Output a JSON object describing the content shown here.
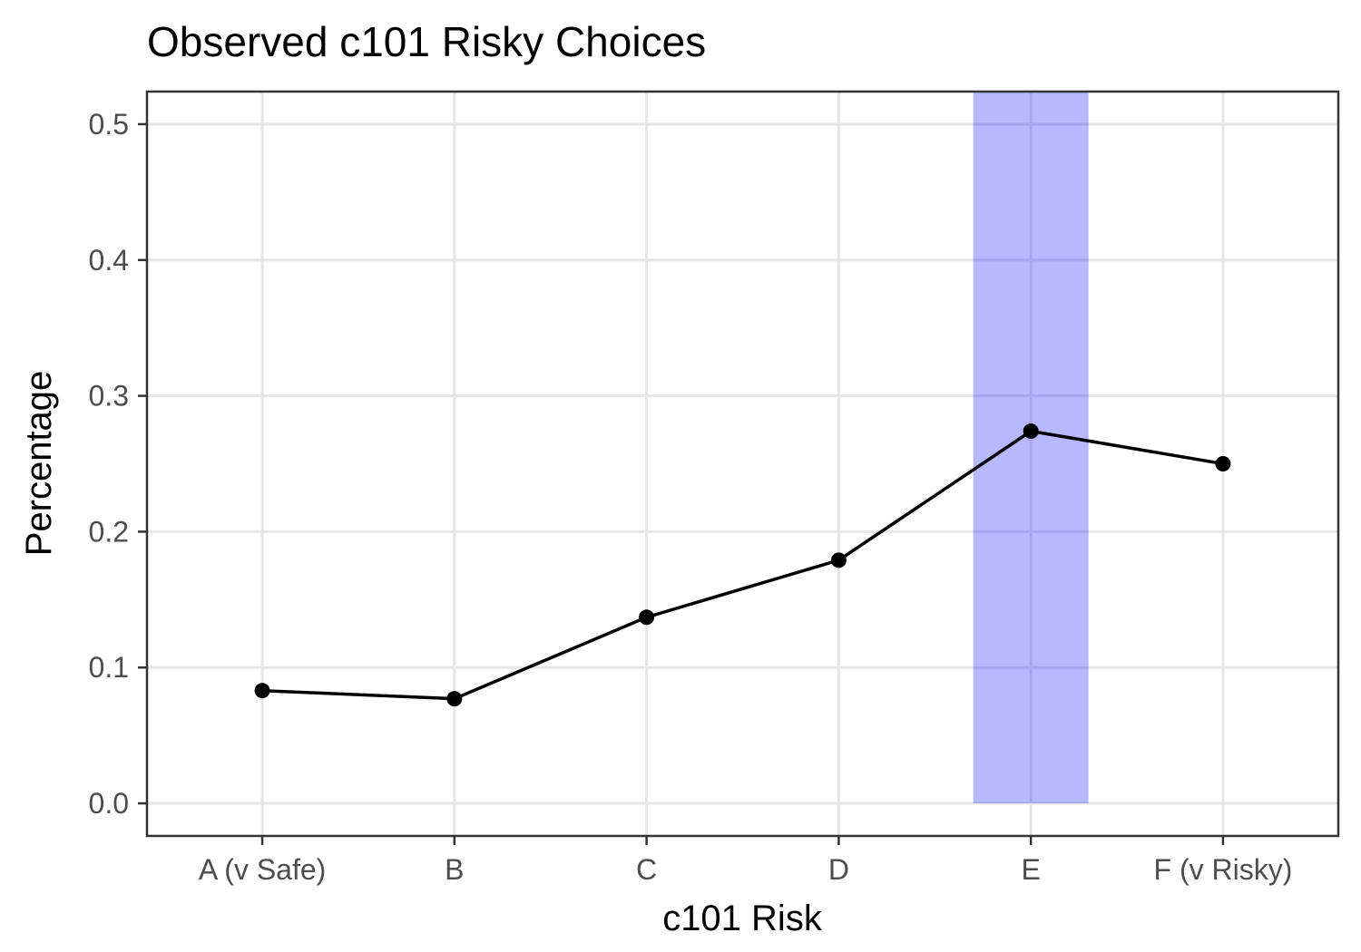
{
  "chart_data": {
    "type": "line",
    "title": "Observed c101 Risky Choices",
    "xlabel": "c101 Risk",
    "ylabel": "Percentage",
    "categories": [
      "A (v Safe)",
      "B",
      "C",
      "D",
      "E",
      "F (v Risky)"
    ],
    "values": [
      0.083,
      0.077,
      0.137,
      0.179,
      0.274,
      0.25
    ],
    "ylim": [
      -0.024,
      0.524
    ],
    "yticks": [
      0.0,
      0.1,
      0.2,
      0.3,
      0.4,
      0.5
    ],
    "ytick_labels": [
      "0.0",
      "0.1",
      "0.2",
      "0.3",
      "0.4",
      "0.5"
    ],
    "highlight": {
      "category": "E",
      "band_width": 0.6,
      "from": 0.0,
      "to": 0.524
    },
    "grid": true,
    "legend": "none",
    "colors": {
      "line": "#000000",
      "point": "#000000",
      "highlight": "#0000ff",
      "panel_border": "#333333",
      "grid": "#e6e6e6"
    }
  }
}
